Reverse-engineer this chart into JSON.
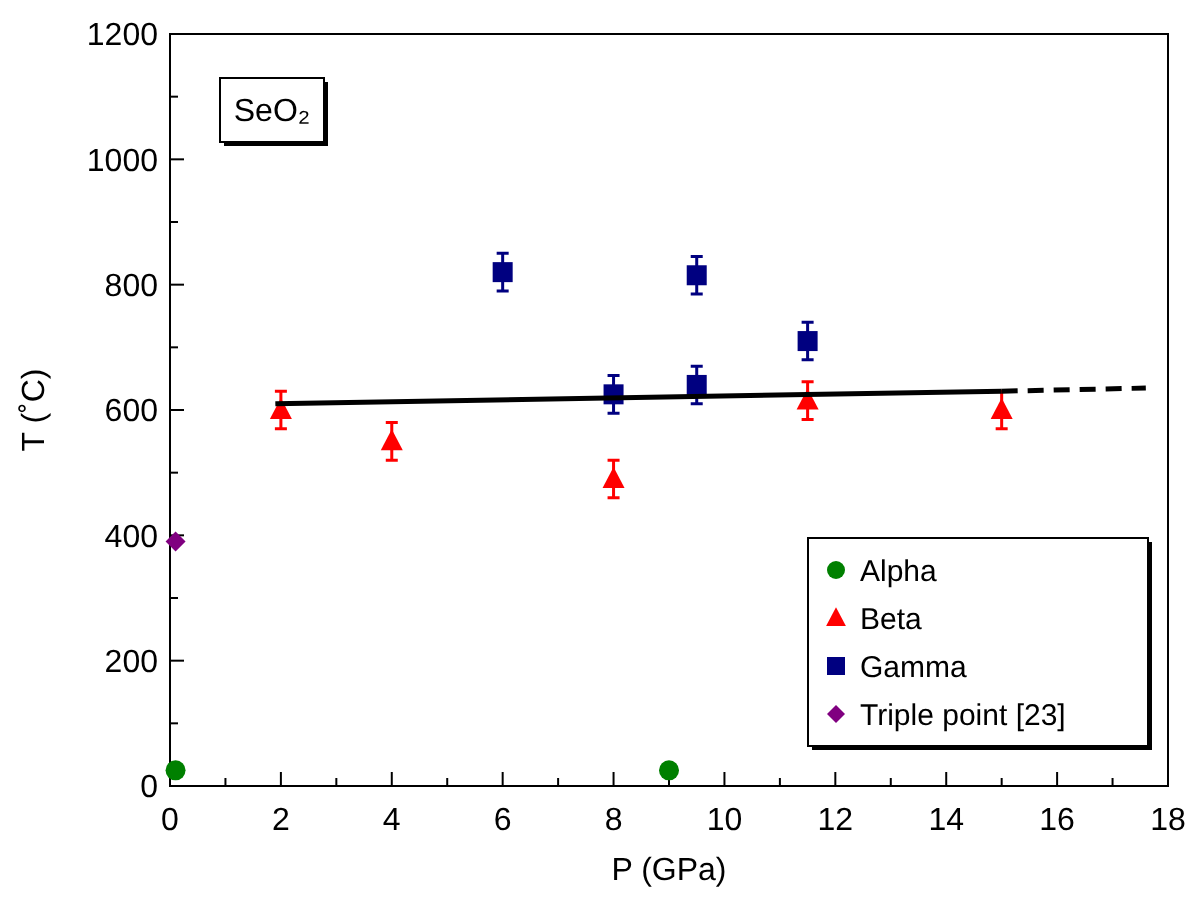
{
  "chart_data": {
    "type": "scatter",
    "xlabel": "P (GPa)",
    "ylabel": "T (˚C)",
    "annotations": [
      "SeO₂"
    ],
    "xlim": [
      0,
      18
    ],
    "ylim": [
      0,
      1200
    ],
    "xticks": [
      0,
      {
        "value": 1,
        "label": null
      },
      2,
      {
        "value": 3,
        "label": null
      },
      4,
      {
        "value": 5,
        "label": null
      },
      6,
      {
        "value": 7,
        "label": null
      },
      8,
      {
        "value": 9,
        "label": null
      },
      10,
      {
        "value": 11,
        "label": null
      },
      12,
      {
        "value": 13,
        "label": null
      },
      14,
      {
        "value": 15,
        "label": null
      },
      16,
      {
        "value": 17,
        "label": null
      },
      18
    ],
    "yticks": [
      0,
      {
        "value": 100,
        "label": null
      },
      200,
      {
        "value": 300,
        "label": null
      },
      400,
      {
        "value": 500,
        "label": null
      },
      600,
      {
        "value": 700,
        "label": null
      },
      800,
      {
        "value": 900,
        "label": null
      },
      1000,
      {
        "value": 1100,
        "label": null
      },
      1200
    ],
    "grid": false,
    "legend": "bottom right",
    "series": [
      {
        "name": "Alpha",
        "color": "#008000",
        "marker": "circle",
        "x": [
          0.1,
          9
        ],
        "values": [
          25,
          25
        ]
      },
      {
        "name": "Beta",
        "color": "#ff0000",
        "marker": "triangle",
        "x": [
          2,
          4,
          8,
          11.5,
          15
        ],
        "values": [
          600,
          550,
          490,
          615,
          600
        ],
        "errors": [
          30,
          30,
          30,
          30,
          30
        ]
      },
      {
        "name": "Gamma",
        "color": "#000080",
        "marker": "square",
        "x": [
          6,
          8,
          9.5,
          9.5,
          11.5
        ],
        "values": [
          820,
          625,
          815,
          640,
          710
        ],
        "errors": [
          30,
          30,
          30,
          30,
          30
        ]
      },
      {
        "name": "Triple point [23]",
        "color": "#800080",
        "marker": "diamond",
        "x": [
          0.1
        ],
        "values": [
          390
        ]
      },
      {
        "type": "line",
        "color": "#000000",
        "line_style": "solid",
        "marker": "none",
        "x": [
          1.9,
          15
        ],
        "values": [
          610,
          630
        ]
      },
      {
        "type": "line",
        "color": "#000000",
        "line_style": "dashed",
        "marker": "none",
        "x": [
          15,
          17.6
        ],
        "values": [
          630,
          635
        ]
      }
    ]
  }
}
